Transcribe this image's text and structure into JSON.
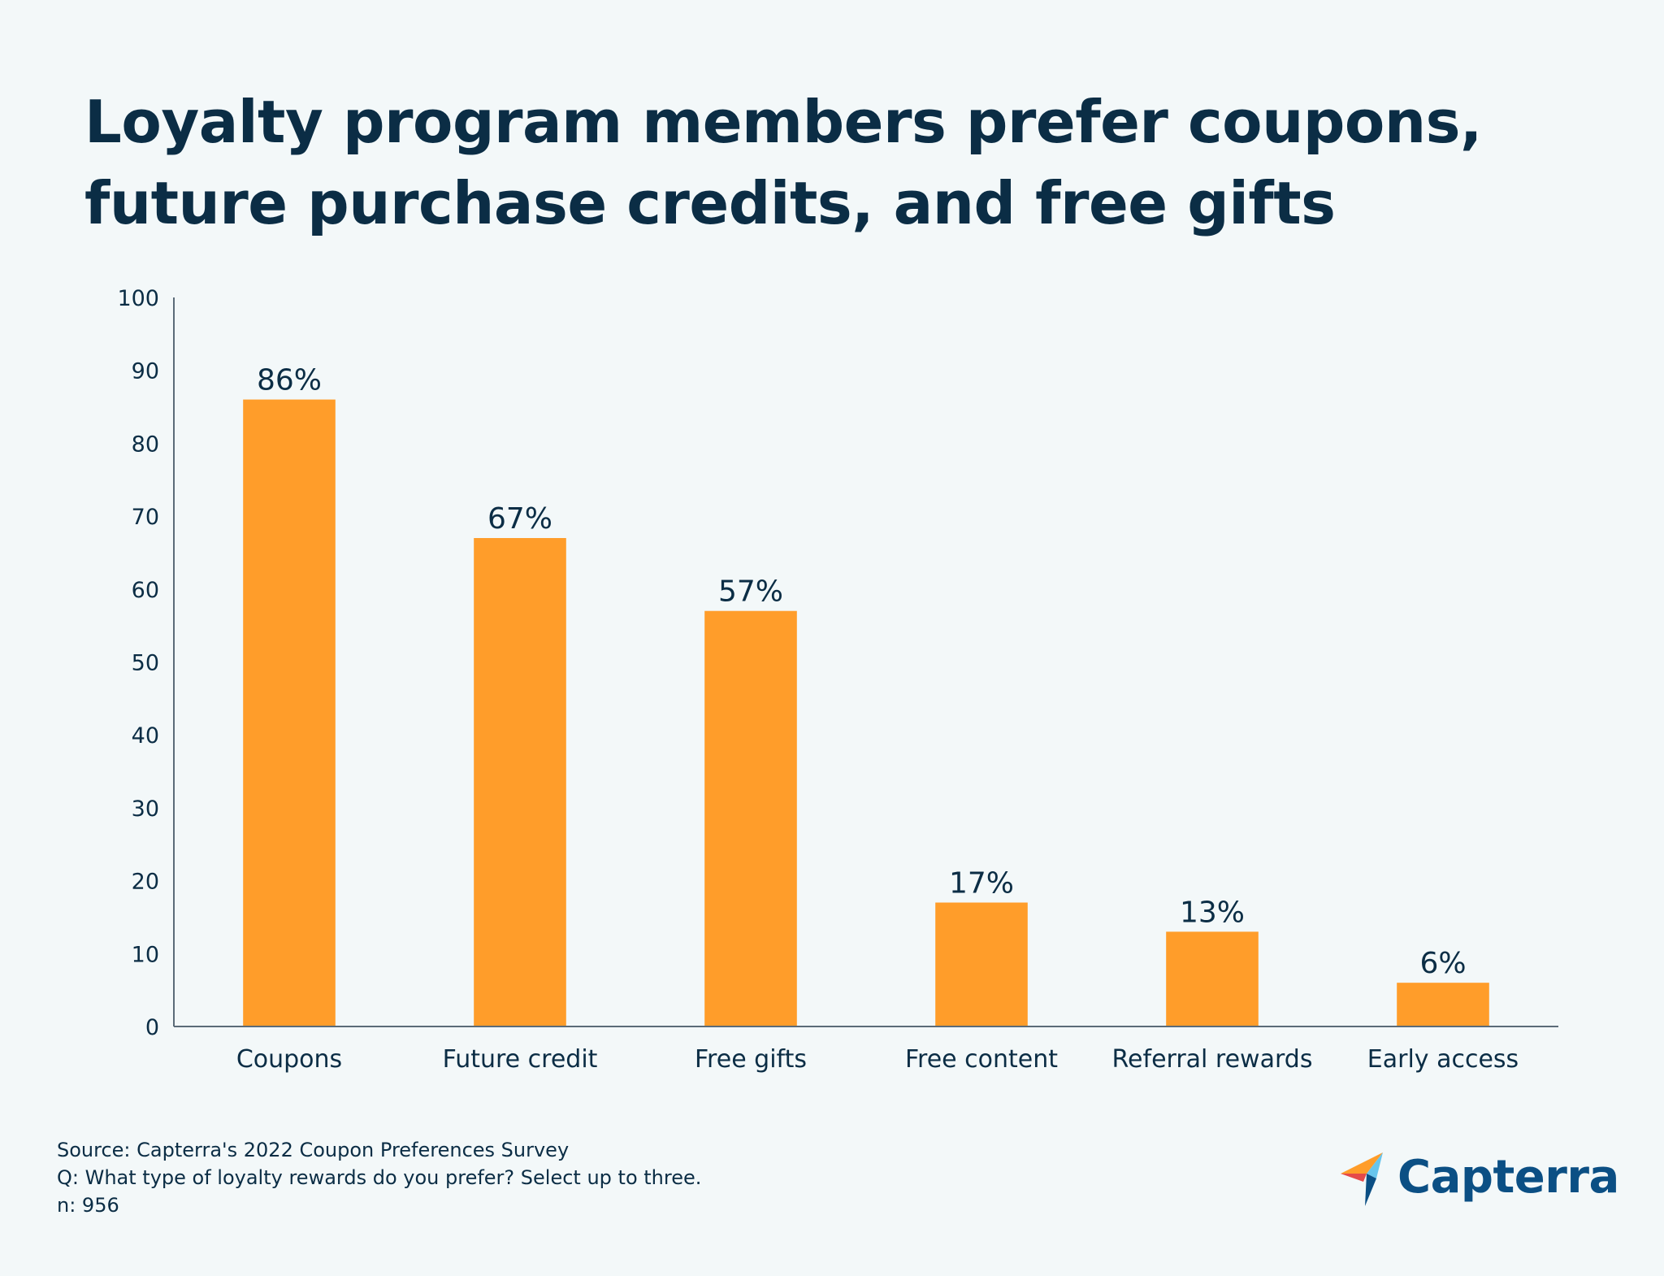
{
  "title_lines": [
    "Loyalty program members prefer coupons,",
    "future purchase credits, and free gifts"
  ],
  "chart_data": {
    "type": "bar",
    "title": "Loyalty program members prefer coupons, future purchase credits, and free gifts",
    "categories": [
      "Coupons",
      "Future credit",
      "Free gifts",
      "Free content",
      "Referral rewards",
      "Early access"
    ],
    "values": [
      86,
      67,
      57,
      17,
      13,
      6
    ],
    "data_labels": [
      "86%",
      "67%",
      "57%",
      "17%",
      "13%",
      "6%"
    ],
    "ylim": [
      0,
      100
    ],
    "yticks": [
      0,
      10,
      20,
      30,
      40,
      50,
      60,
      70,
      80,
      90,
      100
    ],
    "xlabel": "",
    "ylabel": "",
    "grid": false,
    "bar_color": "#ff9d2a",
    "axis_color": "#5b6b78"
  },
  "footer": {
    "source": "Source: Capterra's 2022 Coupon Preferences Survey",
    "question": "Q: What type of loyalty rewards do you prefer? Select up to three.",
    "sample": "n: 956"
  },
  "logo": {
    "name": "Capterra",
    "icon": "capterra-logo-icon",
    "colors": [
      "#ff9d2a",
      "#e54a4a",
      "#68c5ed",
      "#0b4f84"
    ]
  }
}
